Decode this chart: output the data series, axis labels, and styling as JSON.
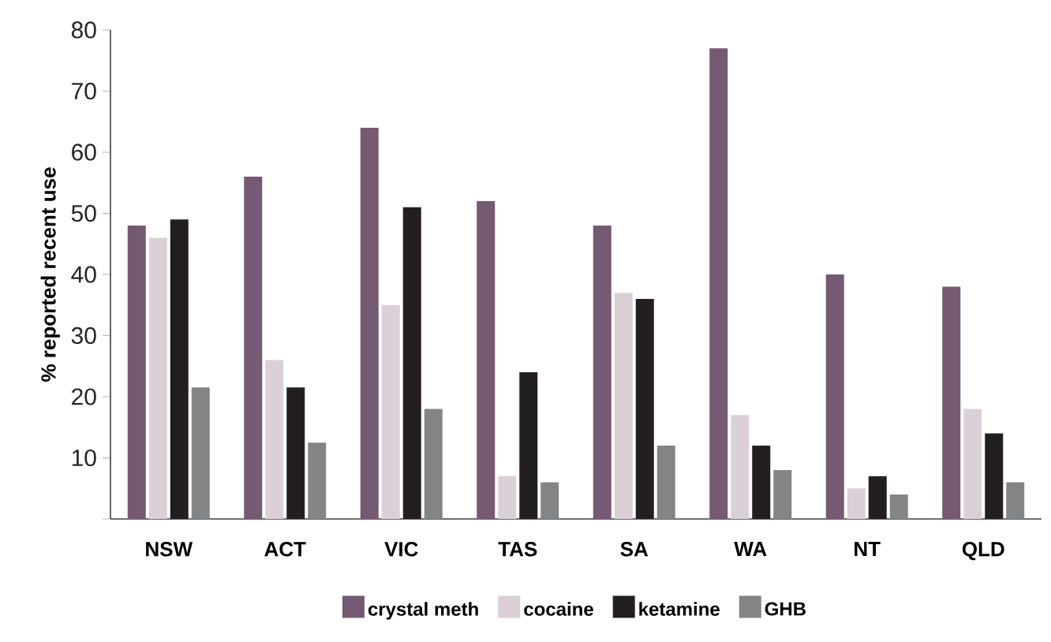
{
  "chart_data": {
    "type": "bar",
    "ylabel": "% reported recent use",
    "categories": [
      "NSW",
      "ACT",
      "VIC",
      "TAS",
      "SA",
      "WA",
      "NT",
      "QLD"
    ],
    "series": [
      {
        "name": "crystal meth",
        "color": "#745a72",
        "values": [
          48,
          56,
          64,
          52,
          48,
          77,
          40,
          38
        ]
      },
      {
        "name": "cocaine",
        "color": "#dbd0d8",
        "values": [
          46,
          26,
          35,
          7,
          37,
          17,
          5,
          18
        ]
      },
      {
        "name": "ketamine",
        "color": "#231f20",
        "values": [
          49,
          21.5,
          51,
          24,
          36,
          12,
          7,
          14
        ]
      },
      {
        "name": "GHB",
        "color": "#838486",
        "values": [
          21.5,
          12.5,
          18,
          6,
          12,
          8,
          4,
          6
        ]
      }
    ],
    "ylim": [
      0,
      80
    ],
    "yticks": [
      {
        "value": 0,
        "label": null
      },
      10,
      20,
      30,
      40,
      50,
      60,
      70,
      80
    ],
    "grid": false,
    "legend": "bottom"
  }
}
